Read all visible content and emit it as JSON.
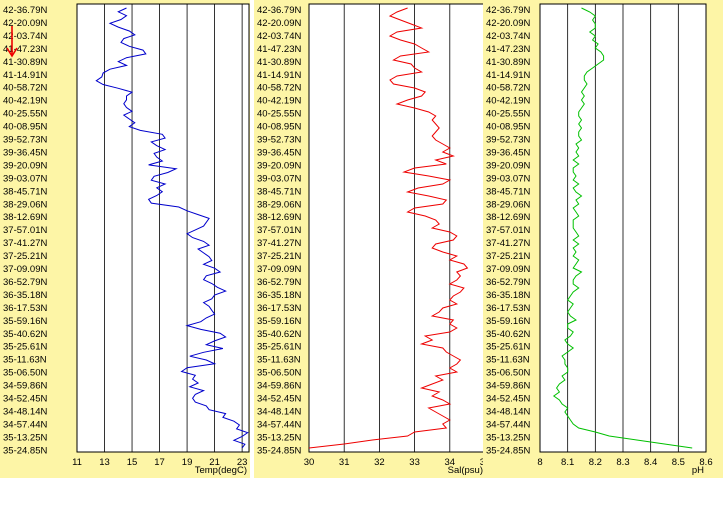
{
  "colors": {
    "panel_background": "#fdf5a6",
    "temp_line": "#0000cc",
    "sal_line": "#ee0000",
    "ph_line": "#00c000",
    "arrow": "#ee0000"
  },
  "direction_indicator": {
    "icon": "down-arrow-icon",
    "color": "#ee0000"
  },
  "chart_data": [
    {
      "type": "line",
      "orientation": "vertical-profile",
      "title": "",
      "xlabel": "Temp(degC)",
      "ylabel": "",
      "xlim": [
        11,
        23.5
      ],
      "x_ticks": [
        "11",
        "13",
        "15",
        "17",
        "19",
        "21",
        "23"
      ],
      "y_ticks": [
        "42-36.79N",
        "42-20.09N",
        "42-03.74N",
        "41-47.23N",
        "41-30.89N",
        "41-14.91N",
        "40-58.72N",
        "40-42.19N",
        "40-25.55N",
        "40-08.95N",
        "39-52.73N",
        "39-36.45N",
        "39-20.09N",
        "39-03.07N",
        "38-45.71N",
        "38-29.06N",
        "38-12.69N",
        "37-57.01N",
        "37-41.27N",
        "37-25.21N",
        "37-09.09N",
        "36-52.79N",
        "36-35.18N",
        "36-17.53N",
        "35-59.16N",
        "35-40.62N",
        "35-25.61N",
        "35-11.63N",
        "35-06.50N",
        "34-59.86N",
        "34-52.45N",
        "34-48.14N",
        "34-57.44N",
        "35-13.25N",
        "35-24.85N"
      ],
      "grid": "vertical",
      "series": [
        {
          "values": [
            14.6,
            14.0,
            14.6,
            14.2,
            13.4,
            14.0,
            14.8,
            15.2,
            14.4,
            14.2,
            14.8,
            15.8,
            16.0,
            14.6,
            14.0,
            14.6,
            13.4,
            12.9,
            12.8,
            12.4,
            12.9,
            14.0,
            15.0,
            14.6,
            14.6,
            14.4,
            14.6,
            15.0,
            14.4,
            14.8,
            15.2,
            14.8,
            15.6,
            17.2,
            17.4,
            16.4,
            16.8,
            17.4,
            16.6,
            16.8,
            17.2,
            16.2,
            18.2,
            17.6,
            16.6,
            16.4,
            17.4,
            16.8,
            17.2,
            16.8,
            16.2,
            16.4,
            18.4,
            19.0,
            19.8,
            20.6,
            20.4,
            20.2,
            19.6,
            19.0,
            19.4,
            20.2,
            20.6,
            19.8,
            20.2,
            20.6,
            20.8,
            20.2,
            21.0,
            21.4,
            20.4,
            20.2,
            20.8,
            21.2,
            21.8,
            21.0,
            20.8,
            20.2,
            20.6,
            20.8,
            21.0,
            20.4,
            20.0,
            19.0,
            20.0,
            21.4,
            21.8,
            21.0,
            20.4,
            21.6,
            20.2,
            19.2,
            20.4,
            21.0,
            19.0,
            18.6,
            19.6,
            19.4,
            19.8,
            19.2,
            20.2,
            19.6,
            19.4,
            19.6,
            20.4,
            20.6,
            21.8,
            21.6,
            22.4,
            22.8,
            22.6,
            23.4,
            23.0,
            22.4,
            23.2,
            23.0
          ]
        }
      ]
    },
    {
      "type": "line",
      "orientation": "vertical-profile",
      "title": "",
      "xlabel": "Sal(psu)",
      "ylabel": "",
      "xlim": [
        30,
        35
      ],
      "x_ticks": [
        "30",
        "31",
        "32",
        "33",
        "34",
        "35"
      ],
      "y_ticks": [
        "42-36.79N",
        "42-20.09N",
        "42-03.74N",
        "41-47.23N",
        "41-30.89N",
        "41-14.91N",
        "40-58.72N",
        "40-42.19N",
        "40-25.55N",
        "40-08.95N",
        "39-52.73N",
        "39-36.45N",
        "39-20.09N",
        "39-03.07N",
        "38-45.71N",
        "38-29.06N",
        "38-12.69N",
        "37-57.01N",
        "37-41.27N",
        "37-25.21N",
        "37-09.09N",
        "36-52.79N",
        "36-35.18N",
        "36-17.53N",
        "35-59.16N",
        "35-40.62N",
        "35-25.61N",
        "35-11.63N",
        "35-06.50N",
        "34-59.86N",
        "34-52.45N",
        "34-48.14N",
        "34-57.44N",
        "35-13.25N",
        "35-24.85N"
      ],
      "grid": "vertical",
      "series": [
        {
          "values": [
            32.8,
            32.5,
            32.3,
            32.6,
            32.9,
            33.2,
            32.5,
            32.3,
            32.6,
            33.0,
            33.2,
            33.4,
            32.6,
            32.4,
            32.9,
            33.0,
            33.2,
            32.5,
            32.3,
            32.4,
            33.0,
            33.3,
            33.2,
            32.8,
            32.5,
            33.0,
            33.4,
            33.6,
            33.5,
            33.6,
            33.7,
            33.6,
            33.5,
            33.6,
            33.8,
            34.0,
            33.8,
            34.1,
            33.6,
            33.9,
            33.0,
            32.7,
            33.4,
            34.0,
            33.8,
            33.1,
            32.8,
            33.4,
            33.9,
            33.8,
            33.0,
            32.8,
            33.3,
            33.6,
            33.7,
            33.5,
            34.0,
            34.2,
            34.1,
            33.6,
            33.5,
            33.8,
            34.2,
            34.0,
            34.4,
            34.5,
            34.2,
            34.3,
            34.2,
            34.0,
            34.4,
            34.3,
            34.1,
            34.0,
            34.2,
            33.8,
            33.7,
            33.5,
            34.1,
            34.0,
            34.2,
            34.0,
            33.3,
            33.5,
            33.2,
            33.8,
            33.9,
            34.1,
            34.3,
            34.2,
            34.0,
            34.2,
            33.6,
            33.8,
            33.5,
            33.2,
            33.7,
            33.5,
            33.8,
            34.0,
            33.4,
            33.6,
            33.8,
            34.0,
            33.8,
            33.9,
            33.0,
            32.8,
            31.8,
            31.0,
            30.0
          ]
        }
      ]
    },
    {
      "type": "line",
      "orientation": "vertical-profile",
      "title": "",
      "xlabel": "pH",
      "ylabel": "",
      "xlim": [
        8,
        8.6
      ],
      "x_ticks": [
        "8",
        "8.1",
        "8.2",
        "8.3",
        "8.4",
        "8.5",
        "8.6"
      ],
      "y_ticks": [
        "42-36.79N",
        "42-20.09N",
        "42-03.74N",
        "41-47.23N",
        "41-30.89N",
        "41-14.91N",
        "40-58.72N",
        "40-42.19N",
        "40-25.55N",
        "40-08.95N",
        "39-52.73N",
        "39-36.45N",
        "39-20.09N",
        "39-03.07N",
        "38-45.71N",
        "38-29.06N",
        "38-12.69N",
        "37-57.01N",
        "37-41.27N",
        "37-25.21N",
        "37-09.09N",
        "36-52.79N",
        "36-35.18N",
        "36-17.53N",
        "35-59.16N",
        "35-40.62N",
        "35-25.61N",
        "35-11.63N",
        "35-06.50N",
        "34-59.86N",
        "34-52.45N",
        "34-48.14N",
        "34-57.44N",
        "35-13.25N",
        "35-24.85N"
      ],
      "grid": "vertical",
      "series": [
        {
          "values": [
            8.15,
            8.18,
            8.2,
            8.19,
            8.2,
            8.2,
            8.18,
            8.2,
            8.19,
            8.21,
            8.2,
            8.22,
            8.23,
            8.23,
            8.21,
            8.19,
            8.17,
            8.16,
            8.16,
            8.17,
            8.16,
            8.15,
            8.16,
            8.15,
            8.16,
            8.15,
            8.14,
            8.14,
            8.15,
            8.14,
            8.15,
            8.14,
            8.14,
            8.15,
            8.13,
            8.14,
            8.13,
            8.14,
            8.12,
            8.14,
            8.12,
            8.12,
            8.13,
            8.12,
            8.14,
            8.12,
            8.13,
            8.15,
            8.13,
            8.14,
            8.12,
            8.13,
            8.14,
            8.12,
            8.12,
            8.12,
            8.13,
            8.14,
            8.12,
            8.14,
            8.12,
            8.13,
            8.12,
            8.14,
            8.13,
            8.12,
            8.15,
            8.13,
            8.12,
            8.12,
            8.14,
            8.12,
            8.11,
            8.1,
            8.12,
            8.11,
            8.1,
            8.11,
            8.13,
            8.1,
            8.1,
            8.12,
            8.11,
            8.09,
            8.1,
            8.12,
            8.1,
            8.08,
            8.09,
            8.09,
            8.1,
            8.1,
            8.08,
            8.09,
            8.07,
            8.06,
            8.07,
            8.05,
            8.07,
            8.08,
            8.1,
            8.09,
            8.1,
            8.11,
            8.12,
            8.14,
            8.2,
            8.25,
            8.35,
            8.45,
            8.55
          ]
        }
      ]
    }
  ]
}
